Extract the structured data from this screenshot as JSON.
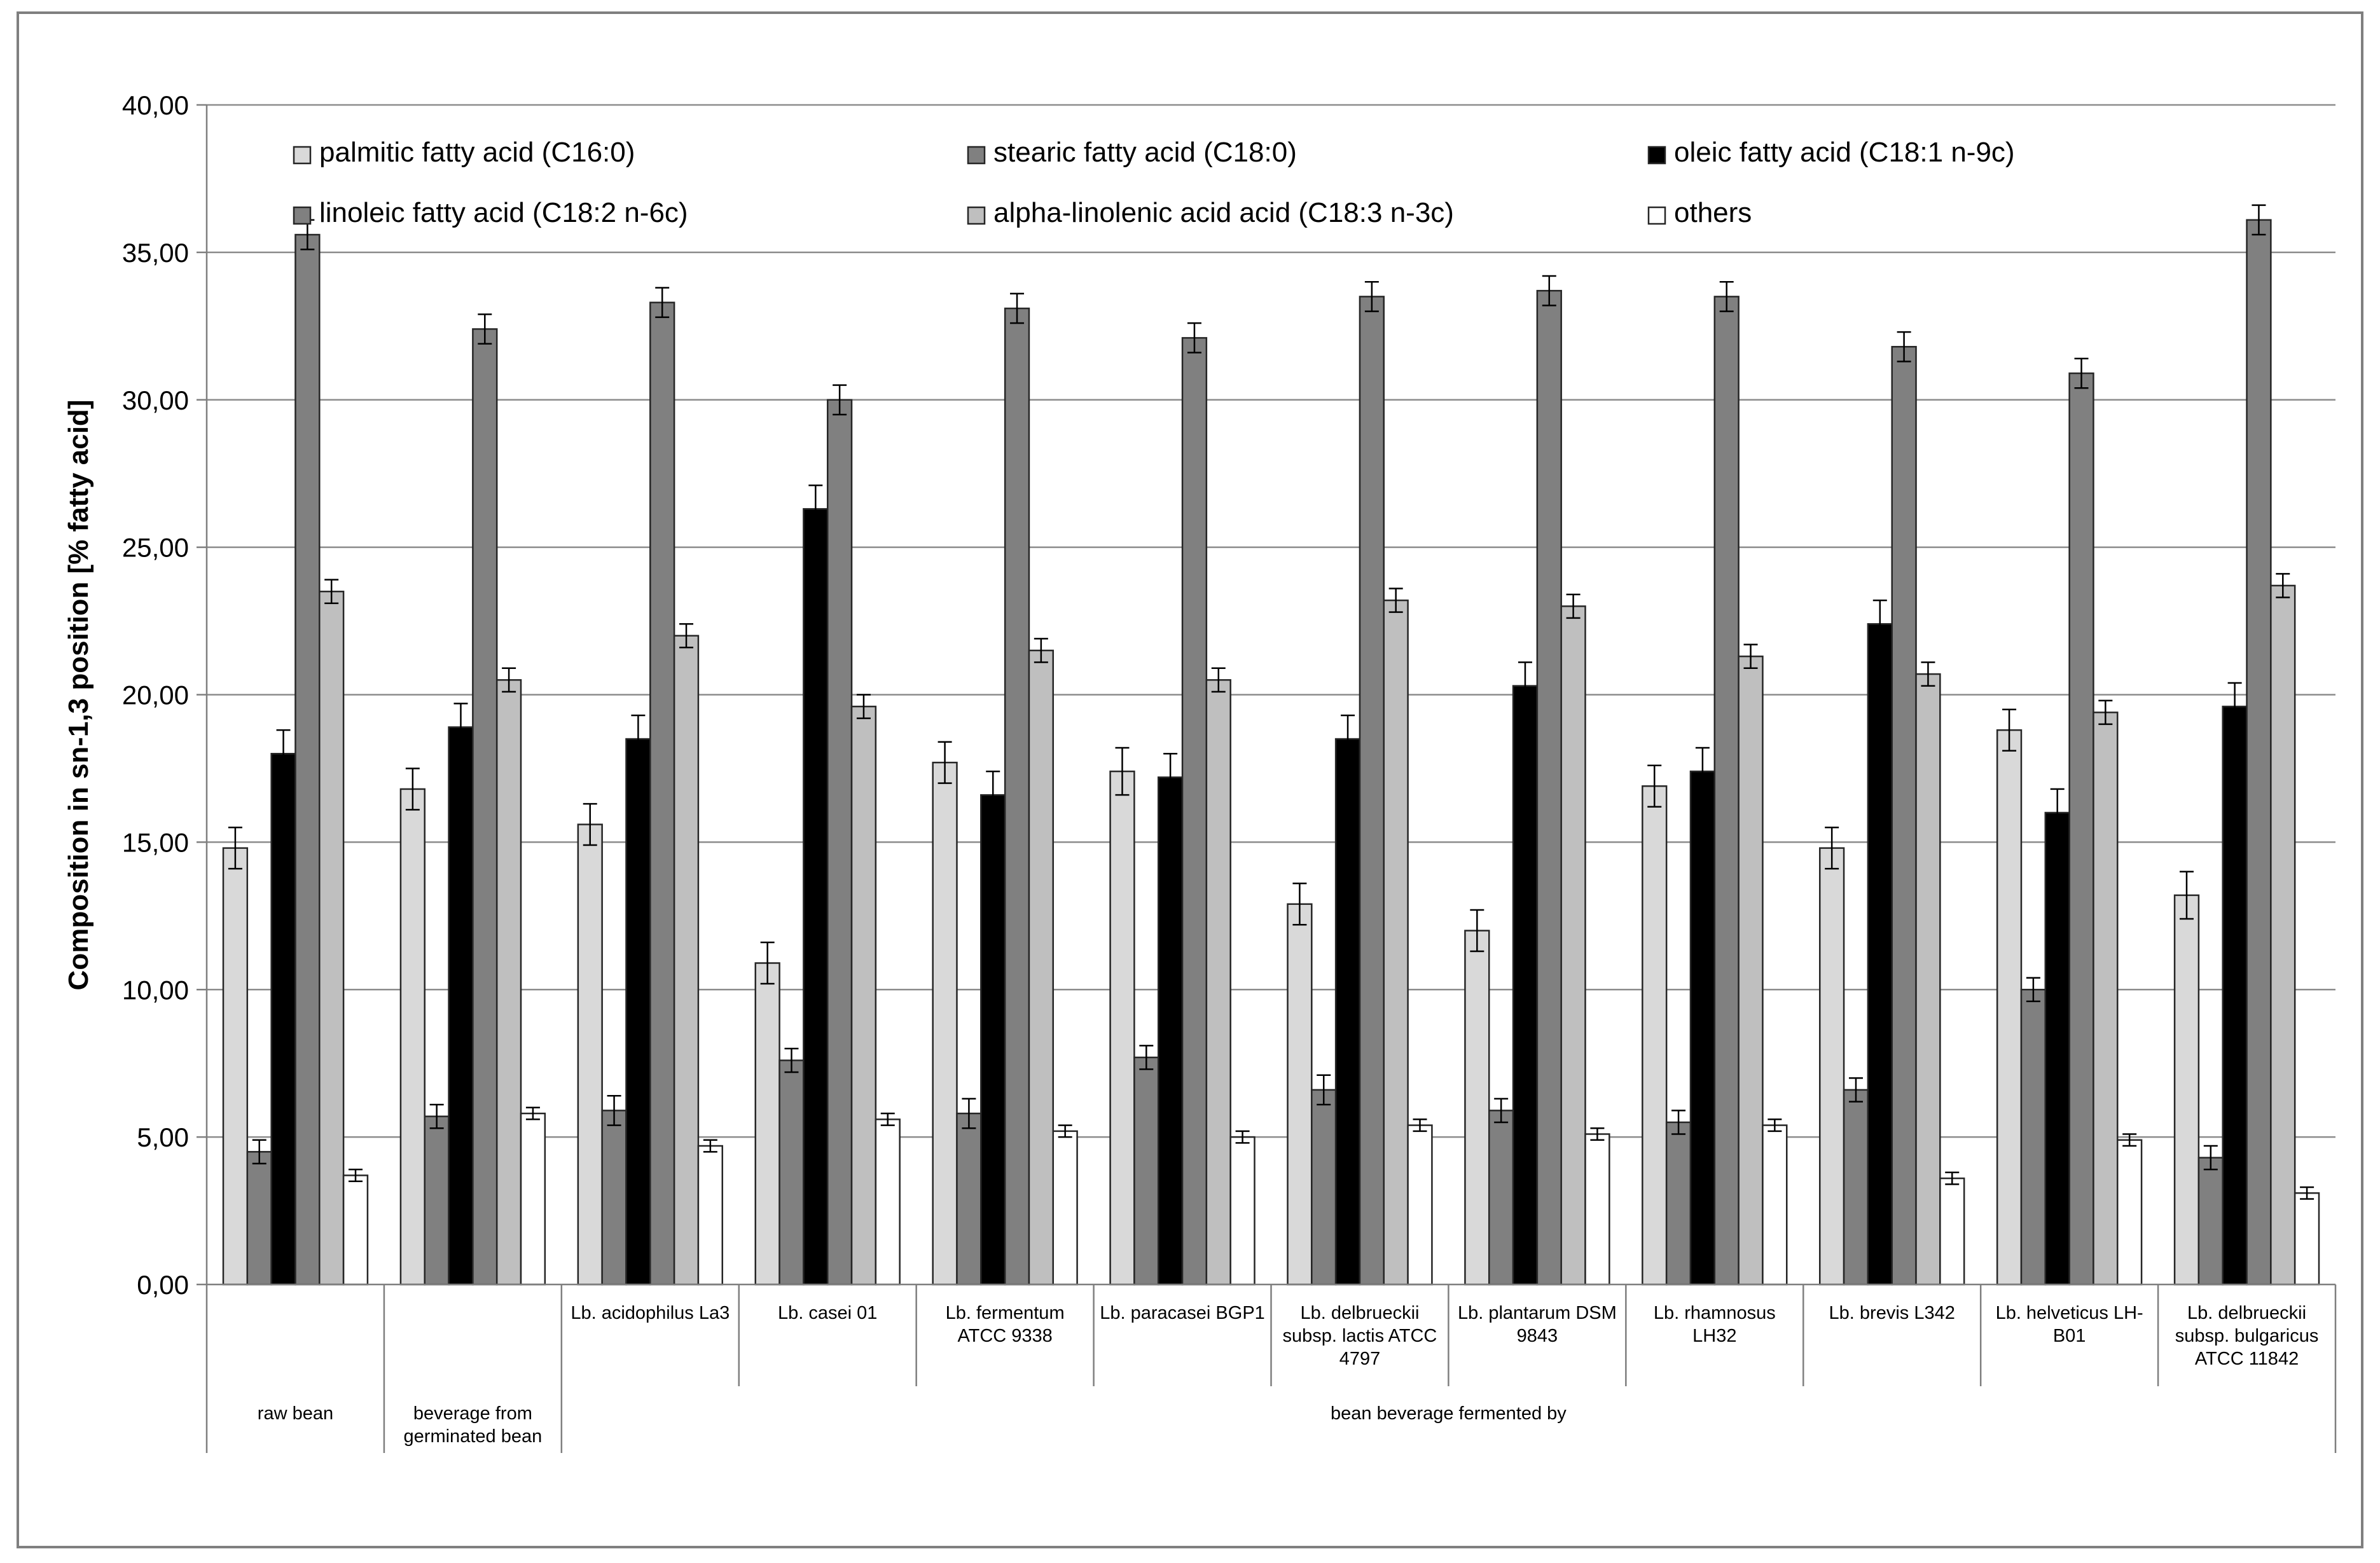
{
  "chart_data": {
    "type": "bar",
    "title": "",
    "ylabel": "Composition in sn-1,3 position [% fatty acid]",
    "xlabel": "",
    "ylim": [
      0,
      40
    ],
    "yticks": [
      "0,00",
      "5,00",
      "10,00",
      "15,00",
      "20,00",
      "25,00",
      "30,00",
      "35,00",
      "40,00"
    ],
    "ytick_values": [
      0,
      5,
      10,
      15,
      20,
      25,
      30,
      35,
      40
    ],
    "grid": true,
    "legend_position": "top",
    "categories": [
      "raw bean",
      "beverage from germinated bean",
      "Lb. acidophilus La3",
      "Lb. casei 01",
      "Lb. fermentum ATCC 9338",
      "Lb. paracasei BGP1",
      "Lb. delbrueckii subsp. lactis ATCC 4797",
      "Lb. plantarum DSM 9843",
      "Lb. rhamnosus LH32",
      "Lb. brevis L342",
      "Lb. helveticus LH-B01",
      "Lb. delbrueckii subsp. bulgaricus ATCC 11842"
    ],
    "category_lines": [
      [
        "raw bean"
      ],
      [
        "beverage from",
        "germinated bean"
      ],
      [
        "Lb. acidophilus La3"
      ],
      [
        "Lb. casei 01"
      ],
      [
        "Lb. fermentum",
        "ATCC 9338"
      ],
      [
        "Lb. paracasei BGP1"
      ],
      [
        "Lb. delbrueckii",
        "subsp. lactis ATCC",
        "4797"
      ],
      [
        "Lb. plantarum DSM",
        "9843"
      ],
      [
        "Lb. rhamnosus",
        "LH32"
      ],
      [
        "Lb. brevis L342"
      ],
      [
        "Lb. helveticus LH-",
        "B01"
      ],
      [
        "Lb. delbrueckii",
        "subsp. bulgaricus",
        "ATCC 11842"
      ]
    ],
    "group_label": "bean beverage fermented by",
    "series": [
      {
        "name": "palmitic fatty acid (C16:0)",
        "color": "#d9d9d9",
        "values": [
          14.8,
          16.8,
          15.6,
          10.9,
          17.7,
          17.4,
          12.9,
          12.0,
          16.9,
          14.8,
          18.8,
          13.2
        ],
        "errors": [
          0.7,
          0.7,
          0.7,
          0.7,
          0.7,
          0.8,
          0.7,
          0.7,
          0.7,
          0.7,
          0.7,
          0.8
        ]
      },
      {
        "name": "stearic fatty acid (C18:0)",
        "color": "#808080",
        "values": [
          4.5,
          5.7,
          5.9,
          7.6,
          5.8,
          7.7,
          6.6,
          5.9,
          5.5,
          6.6,
          10.0,
          4.3
        ],
        "errors": [
          0.4,
          0.4,
          0.5,
          0.4,
          0.5,
          0.4,
          0.5,
          0.4,
          0.4,
          0.4,
          0.4,
          0.4
        ]
      },
      {
        "name": "oleic fatty acid (C18:1 n-9c)",
        "color": "#000000",
        "values": [
          18.0,
          18.9,
          18.5,
          26.3,
          16.6,
          17.2,
          18.5,
          20.3,
          17.4,
          22.4,
          16.0,
          19.6
        ],
        "errors": [
          0.8,
          0.8,
          0.8,
          0.8,
          0.8,
          0.8,
          0.8,
          0.8,
          0.8,
          0.8,
          0.8,
          0.8
        ]
      },
      {
        "name": "linoleic fatty acid (C18:2 n-6c)",
        "color": "#808080",
        "values": [
          35.6,
          32.4,
          33.3,
          30.0,
          33.1,
          32.1,
          33.5,
          33.7,
          33.5,
          31.8,
          30.9,
          36.1
        ],
        "errors": [
          0.5,
          0.5,
          0.5,
          0.5,
          0.5,
          0.5,
          0.5,
          0.5,
          0.5,
          0.5,
          0.5,
          0.5
        ]
      },
      {
        "name": "alpha-linolenic acid acid (C18:3 n-3c)",
        "color": "#bfbfbf",
        "values": [
          23.5,
          20.5,
          22.0,
          19.6,
          21.5,
          20.5,
          23.2,
          23.0,
          21.3,
          20.7,
          19.4,
          23.7
        ],
        "errors": [
          0.4,
          0.4,
          0.4,
          0.4,
          0.4,
          0.4,
          0.4,
          0.4,
          0.4,
          0.4,
          0.4,
          0.4
        ]
      },
      {
        "name": "others",
        "color": "#ffffff",
        "values": [
          3.7,
          5.8,
          4.7,
          5.6,
          5.2,
          5.0,
          5.4,
          5.1,
          5.4,
          3.6,
          4.9,
          3.1
        ],
        "errors": [
          0.2,
          0.2,
          0.2,
          0.2,
          0.2,
          0.2,
          0.2,
          0.2,
          0.2,
          0.2,
          0.2,
          0.2
        ]
      }
    ]
  }
}
